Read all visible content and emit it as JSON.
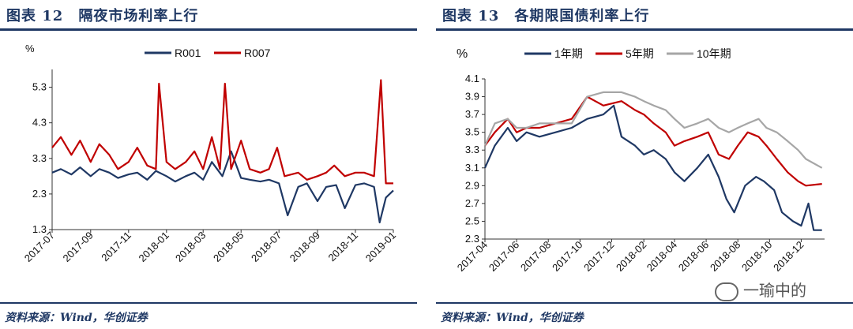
{
  "left": {
    "title": "图表 12　隔夜市场利率上行",
    "source": "资料来源：Wind，华创证券"
  },
  "right": {
    "title": "图表 13　各期限国债利率上行",
    "source": "资料来源：Wind，华创证券"
  },
  "watermark": "一瑜中的",
  "colors": {
    "navy": "#1f3864",
    "red": "#c00000",
    "gray": "#a6a6a6"
  },
  "chart_data": [
    {
      "type": "line",
      "ylabel": "%",
      "ylim": [
        1.3,
        5.8
      ],
      "yticks": [
        "5.3",
        "4.3",
        "3.3",
        "2.3",
        "1.3"
      ],
      "yticks_values": [
        5.3,
        4.3,
        3.3,
        2.3,
        1.3
      ],
      "xlim": [
        "2017-07-01",
        "2019-01-01"
      ],
      "xticks": [
        "2017-07",
        "2017-09",
        "2017-11",
        "2018-01",
        "2018-03",
        "2018-05",
        "2018-07",
        "2018-09",
        "2018-11",
        "2019-01"
      ],
      "legend_position": "top",
      "grid": false,
      "series": [
        {
          "name": "R001",
          "color": "#1f3864",
          "x": [
            "2017-07-01",
            "2017-07-15",
            "2017-08-01",
            "2017-08-15",
            "2017-09-01",
            "2017-09-15",
            "2017-10-01",
            "2017-10-15",
            "2017-11-01",
            "2017-11-15",
            "2017-12-01",
            "2017-12-15",
            "2018-01-01",
            "2018-01-15",
            "2018-02-01",
            "2018-02-15",
            "2018-03-01",
            "2018-03-15",
            "2018-04-01",
            "2018-04-15",
            "2018-05-01",
            "2018-05-15",
            "2018-06-01",
            "2018-06-15",
            "2018-07-01",
            "2018-07-15",
            "2018-08-01",
            "2018-08-15",
            "2018-09-01",
            "2018-09-15",
            "2018-10-01",
            "2018-10-15",
            "2018-11-01",
            "2018-11-15",
            "2018-12-01",
            "2018-12-10",
            "2018-12-20",
            "2019-01-01"
          ],
          "values": [
            2.9,
            3.0,
            2.85,
            3.05,
            2.8,
            3.0,
            2.9,
            2.75,
            2.85,
            2.9,
            2.7,
            2.95,
            2.8,
            2.65,
            2.8,
            2.9,
            2.7,
            3.2,
            2.8,
            3.5,
            2.75,
            2.7,
            2.65,
            2.7,
            2.6,
            1.7,
            2.5,
            2.6,
            2.1,
            2.5,
            2.55,
            1.9,
            2.55,
            2.6,
            2.5,
            1.5,
            2.2,
            2.4
          ]
        },
        {
          "name": "R007",
          "color": "#c00000",
          "x": [
            "2017-07-01",
            "2017-07-15",
            "2017-08-01",
            "2017-08-15",
            "2017-09-01",
            "2017-09-15",
            "2017-10-01",
            "2017-10-15",
            "2017-11-01",
            "2017-11-15",
            "2017-12-01",
            "2017-12-15",
            "2017-12-20",
            "2018-01-01",
            "2018-01-15",
            "2018-02-01",
            "2018-02-15",
            "2018-03-01",
            "2018-03-15",
            "2018-03-28",
            "2018-04-05",
            "2018-04-15",
            "2018-05-01",
            "2018-05-15",
            "2018-06-01",
            "2018-06-15",
            "2018-06-28",
            "2018-07-10",
            "2018-08-01",
            "2018-08-15",
            "2018-09-01",
            "2018-09-15",
            "2018-09-28",
            "2018-10-15",
            "2018-11-01",
            "2018-11-15",
            "2018-12-01",
            "2018-12-12",
            "2018-12-20",
            "2019-01-01"
          ],
          "values": [
            3.6,
            3.9,
            3.4,
            3.8,
            3.2,
            3.7,
            3.4,
            3.0,
            3.2,
            3.6,
            3.1,
            3.0,
            5.4,
            3.2,
            3.0,
            3.2,
            3.5,
            3.0,
            3.9,
            3.0,
            5.4,
            3.0,
            3.8,
            3.0,
            2.9,
            3.0,
            3.6,
            2.8,
            2.9,
            2.7,
            2.8,
            2.9,
            3.1,
            2.8,
            2.9,
            2.9,
            2.8,
            5.5,
            2.6,
            2.6
          ]
        }
      ]
    },
    {
      "type": "line",
      "ylabel": "%",
      "ylim": [
        2.3,
        4.1
      ],
      "yticks": [
        "4.1",
        "3.9",
        "3.7",
        "3.5",
        "3.3",
        "3.1",
        "2.9",
        "2.7",
        "2.5",
        "2.3"
      ],
      "yticks_values": [
        4.1,
        3.9,
        3.7,
        3.5,
        3.3,
        3.1,
        2.9,
        2.7,
        2.5,
        2.3
      ],
      "xlim": [
        "2017-04-01",
        "2019-01-15"
      ],
      "xticks": [
        "2017-04",
        "2017-06",
        "2017-08",
        "2017-10",
        "2017-12",
        "2018-02",
        "2018-04",
        "2018-06",
        "2018-08",
        "2018-10",
        "2018-12"
      ],
      "legend_position": "top",
      "grid": false,
      "series": [
        {
          "name": "1年期",
          "color": "#1f3864",
          "x": [
            "2017-04-01",
            "2017-04-20",
            "2017-05-15",
            "2017-06-01",
            "2017-06-20",
            "2017-07-15",
            "2017-08-15",
            "2017-09-15",
            "2017-10-15",
            "2017-11-15",
            "2017-12-05",
            "2017-12-20",
            "2018-01-15",
            "2018-02-01",
            "2018-02-20",
            "2018-03-15",
            "2018-04-01",
            "2018-04-20",
            "2018-05-15",
            "2018-06-05",
            "2018-06-25",
            "2018-07-10",
            "2018-07-25",
            "2018-08-15",
            "2018-09-05",
            "2018-09-20",
            "2018-10-10",
            "2018-10-25",
            "2018-11-15",
            "2018-12-01",
            "2018-12-15",
            "2018-12-25",
            "2019-01-10"
          ],
          "values": [
            3.1,
            3.35,
            3.55,
            3.4,
            3.5,
            3.45,
            3.5,
            3.55,
            3.65,
            3.7,
            3.8,
            3.45,
            3.35,
            3.25,
            3.3,
            3.2,
            3.05,
            2.95,
            3.1,
            3.25,
            3.0,
            2.75,
            2.6,
            2.9,
            3.0,
            2.95,
            2.85,
            2.6,
            2.5,
            2.45,
            2.7,
            2.4,
            2.4
          ]
        },
        {
          "name": "5年期",
          "color": "#c00000",
          "x": [
            "2017-04-01",
            "2017-04-20",
            "2017-05-15",
            "2017-06-01",
            "2017-06-20",
            "2017-07-15",
            "2017-08-15",
            "2017-09-15",
            "2017-10-15",
            "2017-11-15",
            "2017-12-20",
            "2018-01-15",
            "2018-02-01",
            "2018-02-20",
            "2018-03-15",
            "2018-04-01",
            "2018-04-20",
            "2018-05-15",
            "2018-06-05",
            "2018-06-25",
            "2018-07-15",
            "2018-08-01",
            "2018-08-20",
            "2018-09-10",
            "2018-09-25",
            "2018-10-15",
            "2018-11-05",
            "2018-11-25",
            "2018-12-10",
            "2019-01-10"
          ],
          "values": [
            3.35,
            3.5,
            3.65,
            3.5,
            3.55,
            3.55,
            3.6,
            3.65,
            3.9,
            3.8,
            3.85,
            3.75,
            3.7,
            3.6,
            3.5,
            3.35,
            3.4,
            3.45,
            3.5,
            3.25,
            3.2,
            3.35,
            3.5,
            3.45,
            3.35,
            3.2,
            3.05,
            2.95,
            2.9,
            2.92
          ]
        },
        {
          "name": "10年期",
          "color": "#a6a6a6",
          "x": [
            "2017-04-01",
            "2017-04-20",
            "2017-05-15",
            "2017-06-01",
            "2017-06-20",
            "2017-07-15",
            "2017-08-15",
            "2017-09-15",
            "2017-10-15",
            "2017-11-15",
            "2017-12-20",
            "2018-01-15",
            "2018-02-01",
            "2018-02-20",
            "2018-03-15",
            "2018-04-01",
            "2018-04-20",
            "2018-05-15",
            "2018-06-05",
            "2018-06-25",
            "2018-07-15",
            "2018-08-01",
            "2018-08-20",
            "2018-09-10",
            "2018-09-25",
            "2018-10-15",
            "2018-11-05",
            "2018-11-25",
            "2018-12-10",
            "2019-01-10"
          ],
          "values": [
            3.35,
            3.6,
            3.65,
            3.55,
            3.55,
            3.6,
            3.6,
            3.6,
            3.9,
            3.95,
            3.95,
            3.9,
            3.85,
            3.8,
            3.75,
            3.65,
            3.55,
            3.6,
            3.65,
            3.55,
            3.5,
            3.55,
            3.6,
            3.65,
            3.55,
            3.5,
            3.4,
            3.3,
            3.2,
            3.1
          ]
        }
      ]
    }
  ]
}
